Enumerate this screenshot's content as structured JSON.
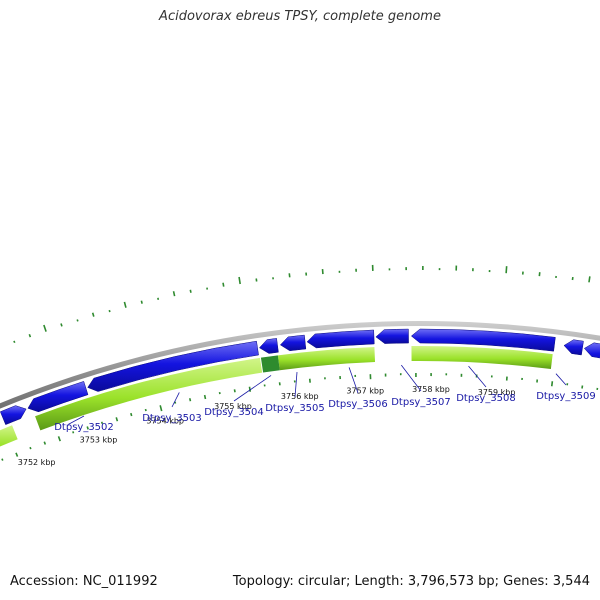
{
  "title": "Acidovorax ebreus TPSY, complete genome",
  "footer": {
    "accession": "Accession: NC_011992",
    "summary": "Topology: circular; Length: 3,796,573 bp; Genes: 3,544"
  },
  "colors": {
    "backbone": "#8c8c8c",
    "forward_gene": "#1414e0",
    "reverse_gene": "#9be22a",
    "reverse_gene_dark": "#5a9a16",
    "highlight_gene": "#2e8b2e",
    "gc_skew": "#2f8a2f",
    "label": "#1a1aa6"
  },
  "position_ticks": [
    "3752 kbp",
    "3753 kbp",
    "3754 kbp",
    "3755 kbp",
    "3756 kbp",
    "3757 kbp",
    "3758 kbp",
    "3759 kbp"
  ],
  "gene_labels": [
    "Dtpsy_3502",
    "Dtpsy_3503",
    "Dtpsy_3504",
    "Dtpsy_3505",
    "Dtpsy_3506",
    "Dtpsy_3507",
    "Dtpsy_3508",
    "Dtpsy_3509"
  ]
}
